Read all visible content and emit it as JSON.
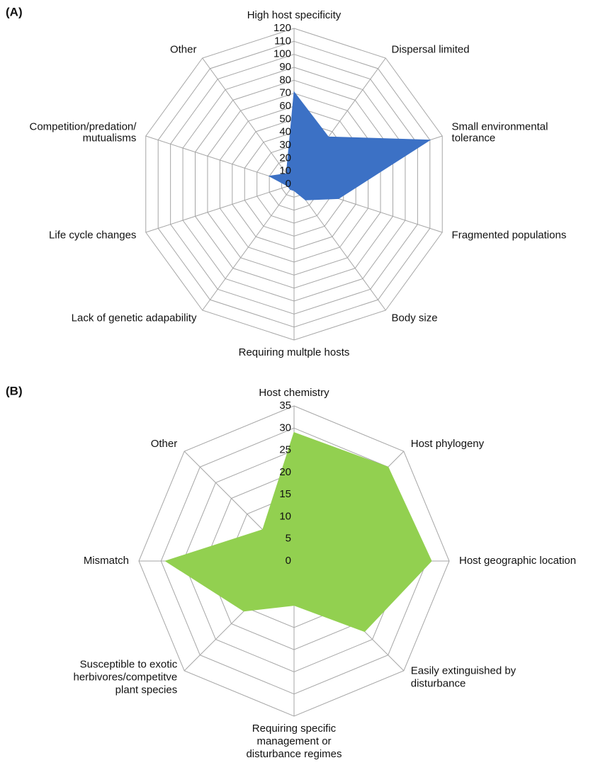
{
  "chart_data": [
    {
      "type": "radar",
      "panel_label": "(A)",
      "categories": [
        [
          "High host specificity"
        ],
        [
          "Dispersal limited"
        ],
        [
          "Small environmental",
          "tolerance"
        ],
        [
          "Fragmented populations"
        ],
        [
          "Body size"
        ],
        [
          "Requiring multple hosts"
        ],
        [
          "Lack of genetic adapability"
        ],
        [
          "Life cycle changes"
        ],
        [
          "Competition/predation/",
          "mutualisms"
        ],
        [
          "Other"
        ]
      ],
      "series": [
        {
          "color": "#3c71c5",
          "values": [
            71,
            45,
            110,
            36,
            15,
            5,
            5,
            5,
            20,
            10
          ]
        }
      ],
      "rlim": [
        0,
        120
      ],
      "rticks": [
        0,
        10,
        20,
        30,
        40,
        50,
        60,
        70,
        80,
        90,
        100,
        110,
        120
      ],
      "grid": true
    },
    {
      "type": "radar",
      "panel_label": "(B)",
      "categories": [
        [
          "Host chemistry"
        ],
        [
          "Host phylogeny"
        ],
        [
          "Host geographic location"
        ],
        [
          "Easily extinguished by",
          "disturbance"
        ],
        [
          "Requiring specific",
          "management or",
          "disturbance regimes"
        ],
        [
          "Susceptible to exotic",
          "herbivores/competitve",
          "plant species"
        ],
        [
          "Mismatch"
        ],
        [
          "Other"
        ]
      ],
      "series": [
        {
          "color": "#92d050",
          "values": [
            29,
            30,
            31,
            22.5,
            10,
            16,
            29,
            10
          ]
        }
      ],
      "rlim": [
        0,
        35
      ],
      "rticks": [
        0,
        5,
        10,
        15,
        20,
        25,
        30,
        35
      ],
      "grid": true
    }
  ]
}
